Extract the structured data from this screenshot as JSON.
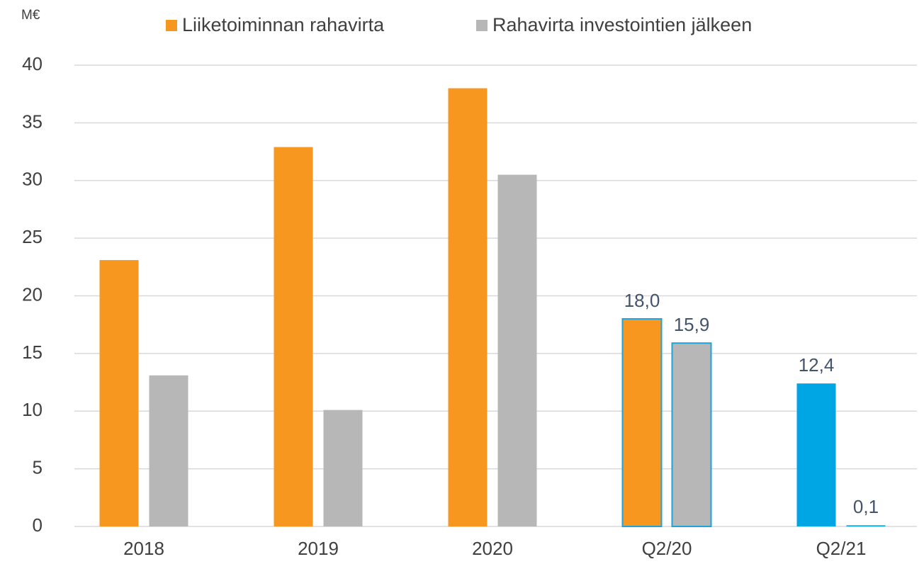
{
  "chart_data": {
    "type": "bar",
    "unit_label": "M€",
    "categories": [
      "2018",
      "2019",
      "2020",
      "Q2/20",
      "Q2/21"
    ],
    "series": [
      {
        "name": "Liiketoiminnan rahavirta",
        "color": "#f7971f",
        "values": [
          23.1,
          32.9,
          38.0,
          18.0,
          12.4
        ],
        "colors": [
          "#f7971f",
          "#f7971f",
          "#f7971f",
          "#f7971f",
          "#00a6e3"
        ],
        "edgecolors": [
          null,
          null,
          null,
          "#1fa3d9",
          null
        ],
        "value_labels": [
          null,
          null,
          null,
          "18,0",
          "12,4"
        ]
      },
      {
        "name": "Rahavirta investointien jälkeen",
        "color": "#b7b7b7",
        "values": [
          13.1,
          10.1,
          30.5,
          15.9,
          0.1
        ],
        "colors": [
          "#b7b7b7",
          "#b7b7b7",
          "#b7b7b7",
          "#b7b7b7",
          "#00a6e3"
        ],
        "edgecolors": [
          null,
          null,
          null,
          "#1fa3d9",
          null
        ],
        "value_labels": [
          null,
          null,
          null,
          "15,9",
          "0,1"
        ]
      }
    ],
    "ylim": [
      0,
      40
    ],
    "yticks": [
      0,
      5,
      10,
      15,
      20,
      25,
      30,
      35,
      40
    ],
    "grid": true,
    "legend": "top"
  }
}
